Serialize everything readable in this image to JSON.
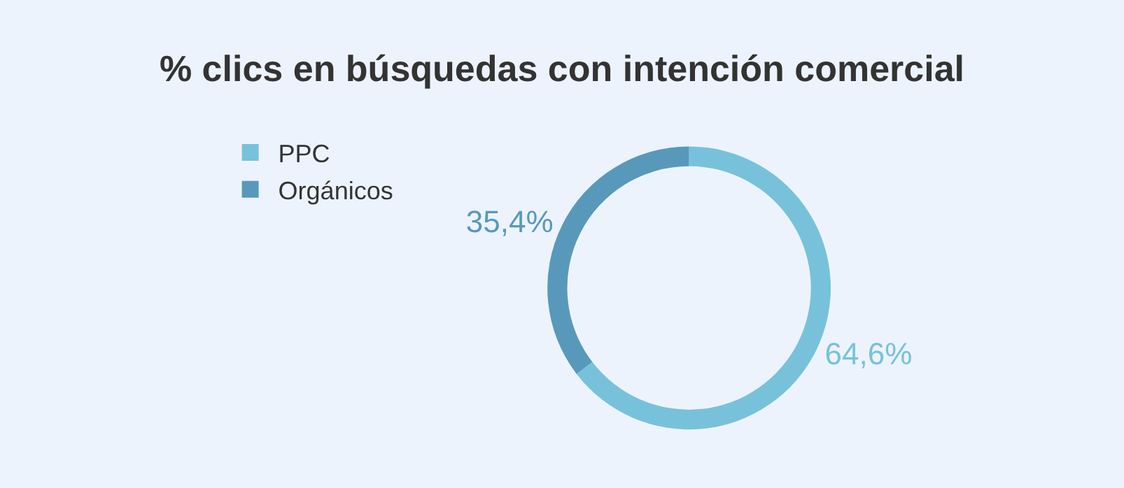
{
  "chart_data": {
    "type": "donut",
    "title": "% clics en búsquedas con intención comercial",
    "categories": [
      "PPC",
      "Orgánicos"
    ],
    "values": [
      64.6,
      35.4
    ],
    "colors": [
      "#77c2da",
      "#5899bb"
    ],
    "value_labels": [
      "64,6%",
      "35,4%"
    ],
    "legend": "top left"
  }
}
